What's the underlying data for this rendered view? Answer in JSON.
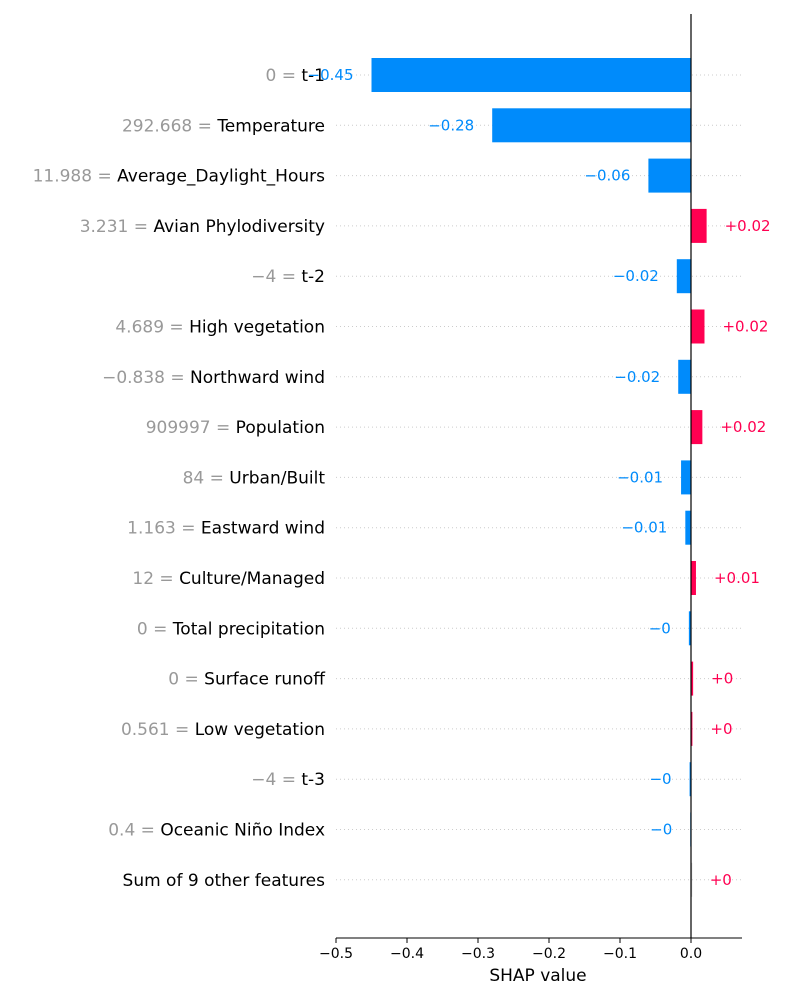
{
  "chart_data": {
    "type": "bar",
    "orientation": "horizontal",
    "xlabel": "SHAP value",
    "xlim": [
      -0.5,
      0.07
    ],
    "xticks": [
      -0.5,
      -0.4,
      -0.3,
      -0.2,
      -0.1,
      0.0
    ],
    "xtick_labels": [
      "−0.5",
      "−0.4",
      "−0.3",
      "−0.2",
      "−0.1",
      "0.0"
    ],
    "colors": {
      "positive": "#ff0051",
      "negative": "#008bfb",
      "neutral": "#cccccc"
    },
    "features": [
      {
        "value": "0 =",
        "name": "t-1",
        "shap": -0.45,
        "label": "−0.45"
      },
      {
        "value": "292.668 =",
        "name": "Temperature",
        "shap": -0.28,
        "label": "−0.28"
      },
      {
        "value": "11.988 =",
        "name": "Average_Daylight_Hours",
        "shap": -0.06,
        "label": "−0.06"
      },
      {
        "value": "3.231 =",
        "name": "Avian Phylodiversity",
        "shap": 0.022,
        "label": "+0.02"
      },
      {
        "value": "−4 =",
        "name": "t-2",
        "shap": -0.02,
        "label": "−0.02"
      },
      {
        "value": "4.689 =",
        "name": "High vegetation",
        "shap": 0.019,
        "label": "+0.02"
      },
      {
        "value": "−0.838 =",
        "name": "Northward wind",
        "shap": -0.018,
        "label": "−0.02"
      },
      {
        "value": "909997 =",
        "name": "Population",
        "shap": 0.016,
        "label": "+0.02"
      },
      {
        "value": "84 =",
        "name": "Urban/Built",
        "shap": -0.014,
        "label": "−0.01"
      },
      {
        "value": "1.163 =",
        "name": "Eastward wind",
        "shap": -0.008,
        "label": "−0.01"
      },
      {
        "value": "12 =",
        "name": "Culture/Managed",
        "shap": 0.007,
        "label": "+0.01"
      },
      {
        "value": "0 =",
        "name": "Total precipitation",
        "shap": -0.003,
        "label": "−0"
      },
      {
        "value": "0 =",
        "name": "Surface runoff",
        "shap": 0.003,
        "label": "+0"
      },
      {
        "value": "0.561 =",
        "name": "Low vegetation",
        "shap": 0.002,
        "label": "+0"
      },
      {
        "value": "−4 =",
        "name": "t-3",
        "shap": -0.002,
        "label": "−0"
      },
      {
        "value": "0.4 =",
        "name": "Oceanic Niño Index",
        "shap": -0.001,
        "label": "−0"
      },
      {
        "value": "",
        "name": "Sum of 9 other features",
        "shap": 0.001,
        "label": "+0",
        "neutral": true
      }
    ]
  }
}
